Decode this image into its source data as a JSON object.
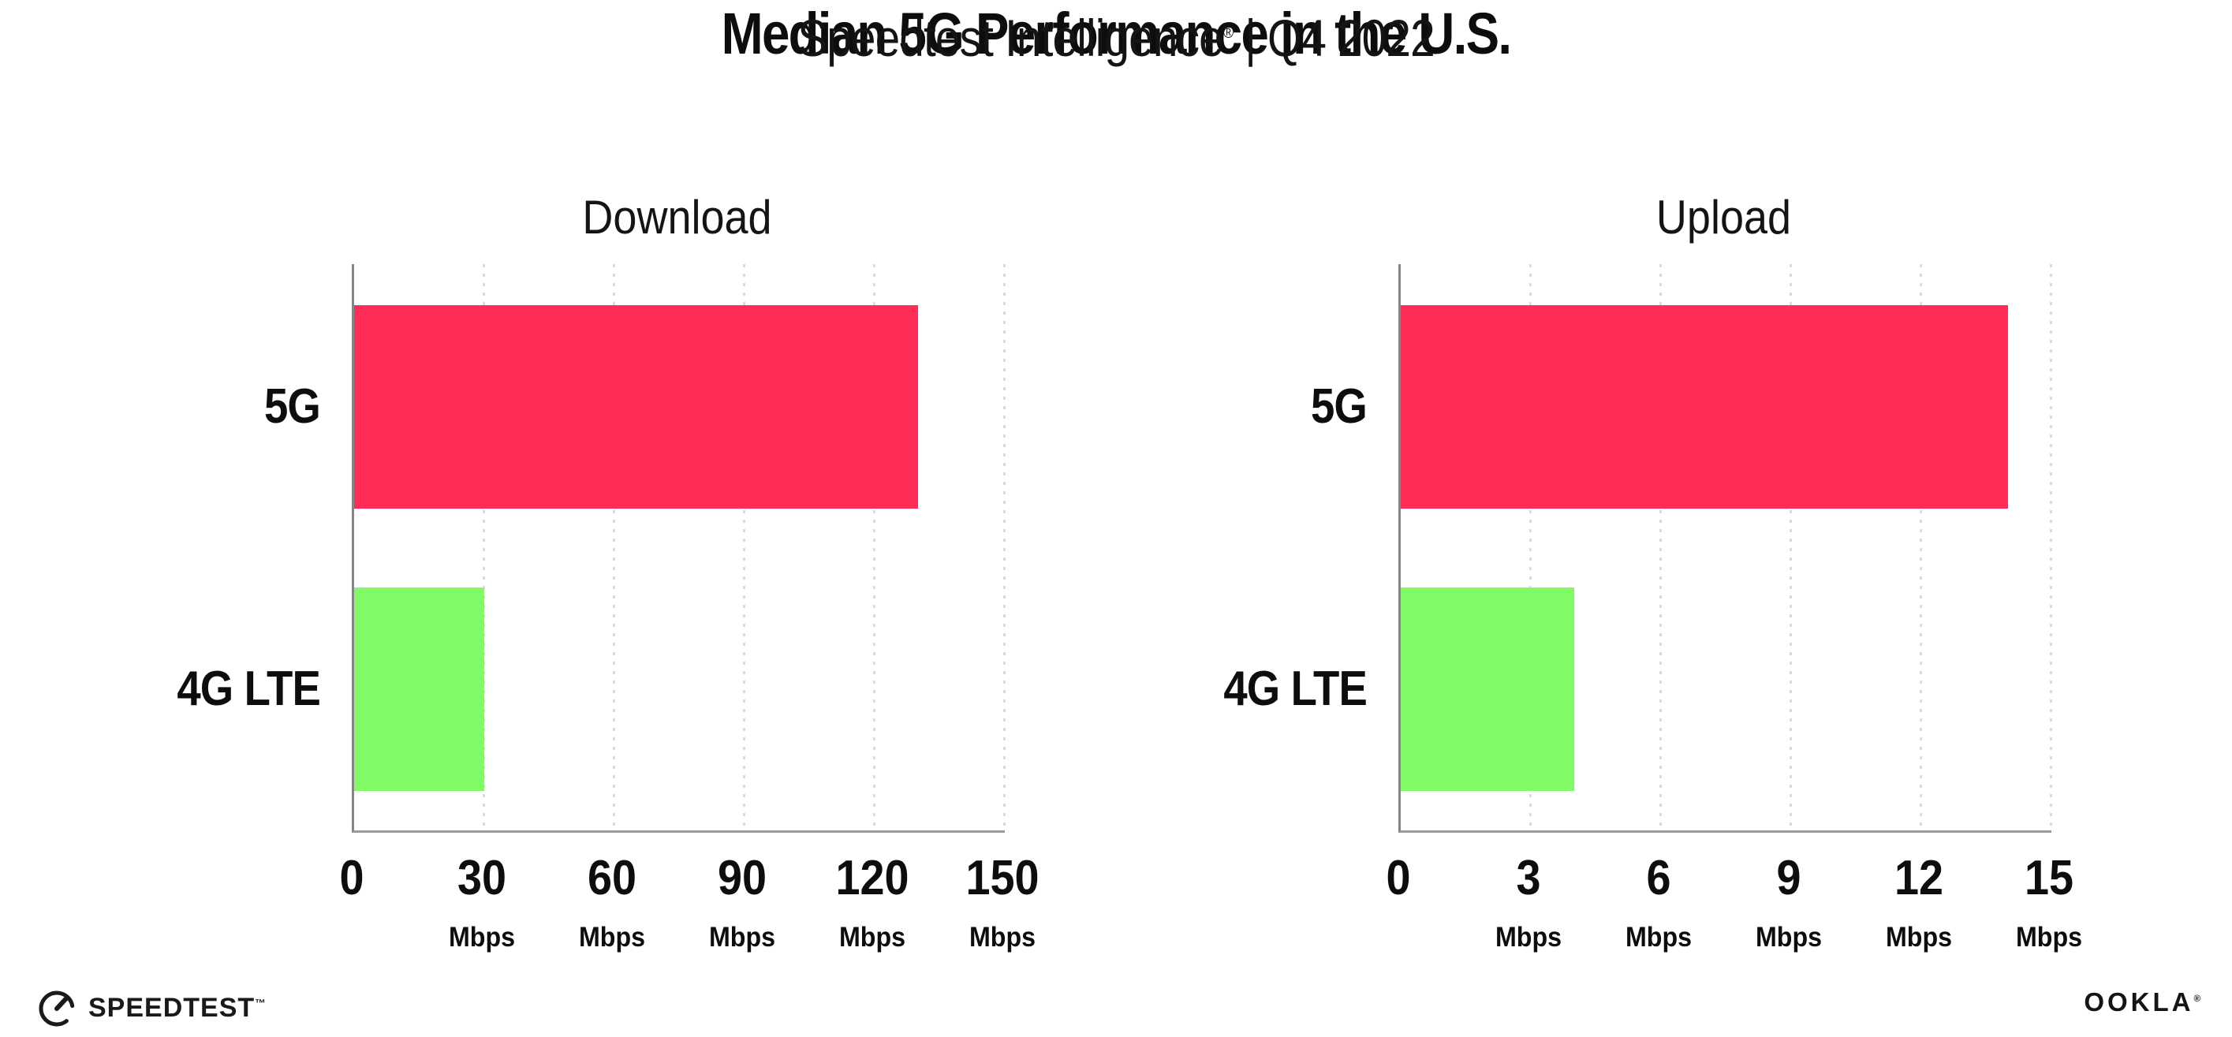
{
  "header": {
    "title": "Median 5G Performance in the U.S.",
    "subtitle_brand": "Speedtest Intelligence",
    "subtitle_reg": "®",
    "subtitle_divider": " | ",
    "subtitle_period": "Q4 2022"
  },
  "footer": {
    "speedtest_label": "SPEEDTEST",
    "speedtest_tm": "™",
    "ookla_label": "OOKLA",
    "ookla_reg": "®"
  },
  "colors": {
    "bar_5g": "#FF2E58",
    "bar_4g_lte": "#80FB66",
    "axis_left": "#858585",
    "axis_bottom": "#9a9a9a",
    "gridline": "#d9d9e4",
    "text": "#111111"
  },
  "chart_data": [
    {
      "type": "bar",
      "orientation": "horizontal",
      "title": "Download",
      "categories": [
        "5G",
        "4G LTE"
      ],
      "values": [
        130,
        30
      ],
      "unit": "Mbps",
      "xlim": [
        0,
        150
      ],
      "xticks": [
        0,
        30,
        60,
        90,
        120,
        150
      ],
      "grid": "dotted-vertical",
      "legend": "none",
      "bar_colors": [
        "#FF2E58",
        "#80FB66"
      ]
    },
    {
      "type": "bar",
      "orientation": "horizontal",
      "title": "Upload",
      "categories": [
        "5G",
        "4G LTE"
      ],
      "values": [
        14,
        4
      ],
      "unit": "Mbps",
      "xlim": [
        0,
        15
      ],
      "xticks": [
        0,
        3,
        6,
        9,
        12,
        15
      ],
      "grid": "dotted-vertical",
      "legend": "none",
      "bar_colors": [
        "#FF2E58",
        "#80FB66"
      ]
    }
  ]
}
